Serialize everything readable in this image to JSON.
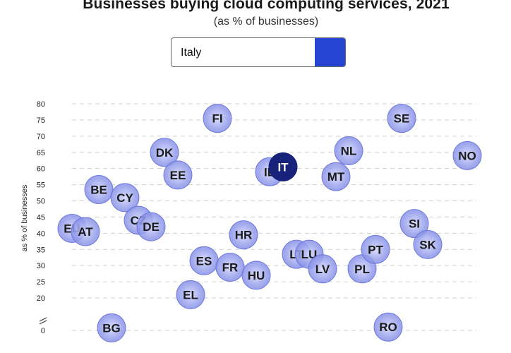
{
  "header": {
    "title": "Businesses buying cloud computing services, 2021",
    "subtitle": "(as % of businesses)"
  },
  "country_select": {
    "selected": "Italy"
  },
  "colors": {
    "bubble": "#9aa2ec",
    "bubble_border": "#6e78dc",
    "highlight": "#17237a",
    "accent_button": "#2644d2"
  },
  "chart_data": {
    "type": "scatter",
    "title": "Businesses buying cloud computing services, 2021",
    "subtitle": "(as % of businesses)",
    "ylabel": "as % of businesses",
    "ylim": [
      0,
      80
    ],
    "y_axis_break": true,
    "y_ticks": [
      0,
      20,
      25,
      30,
      35,
      40,
      45,
      50,
      55,
      60,
      65,
      70,
      75,
      80
    ],
    "grid": true,
    "highlight": "IT",
    "points": [
      {
        "label": "EU",
        "y": 41.5
      },
      {
        "label": "AT",
        "y": 40.5
      },
      {
        "label": "BE",
        "y": 53.5
      },
      {
        "label": "CY",
        "y": 51
      },
      {
        "label": "CZ",
        "y": 44
      },
      {
        "label": "DE",
        "y": 42
      },
      {
        "label": "DK",
        "y": 65
      },
      {
        "label": "EE",
        "y": 58
      },
      {
        "label": "BG",
        "y": 3
      },
      {
        "label": "ES",
        "y": 31.5
      },
      {
        "label": "EL",
        "y": 21
      },
      {
        "label": "FI",
        "y": 75.5
      },
      {
        "label": "FR",
        "y": 29.5
      },
      {
        "label": "HR",
        "y": 39.5
      },
      {
        "label": "HU",
        "y": 27
      },
      {
        "label": "IE",
        "y": 59
      },
      {
        "label": "IT",
        "y": 60.5
      },
      {
        "label": "LT",
        "y": 33.5
      },
      {
        "label": "LU",
        "y": 33.5
      },
      {
        "label": "LV",
        "y": 29
      },
      {
        "label": "MT",
        "y": 57.5
      },
      {
        "label": "NL",
        "y": 65.5
      },
      {
        "label": "PL",
        "y": 29
      },
      {
        "label": "PT",
        "y": 35
      },
      {
        "label": "RO",
        "y": 4
      },
      {
        "label": "SE",
        "y": 75.5
      },
      {
        "label": "SI",
        "y": 43
      },
      {
        "label": "SK",
        "y": 36.5
      },
      {
        "label": "NO",
        "y": 64
      }
    ]
  }
}
